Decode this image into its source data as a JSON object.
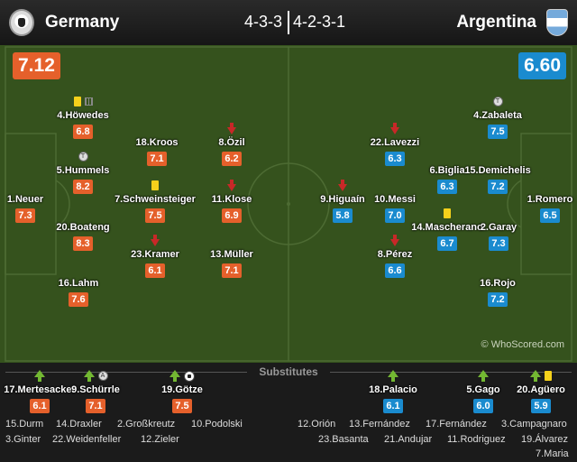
{
  "header": {
    "home_team": "Germany",
    "away_team": "Argentina",
    "home_formation": "4-3-3",
    "away_formation": "4-2-3-1",
    "home_crest_icon": "germany-crest-icon",
    "away_crest_icon": "argentina-crest-icon"
  },
  "pitch": {
    "home_rating": "7.12",
    "away_rating": "6.60",
    "watermark": "© WhoScored.com",
    "colors": {
      "home": "#e5602b",
      "away": "#1a8bcf",
      "grass": "#35521d"
    }
  },
  "home_players": [
    {
      "name": "4.Höwedes",
      "rating": "6.8",
      "badges": [
        "yellow-card-icon",
        "sub-icon"
      ]
    },
    {
      "name": "5.Hummels",
      "rating": "8.2",
      "badges": [
        "goal-icon"
      ]
    },
    {
      "name": "1.Neuer",
      "rating": "7.3",
      "badges": []
    },
    {
      "name": "20.Boateng",
      "rating": "8.3",
      "badges": []
    },
    {
      "name": "16.Lahm",
      "rating": "7.6",
      "badges": []
    },
    {
      "name": "18.Kroos",
      "rating": "7.1",
      "badges": []
    },
    {
      "name": "7.Schweinsteiger",
      "rating": "7.5",
      "badges": [
        "yellow-card-icon"
      ]
    },
    {
      "name": "23.Kramer",
      "rating": "6.1",
      "badges": [
        "sub-off-icon"
      ]
    },
    {
      "name": "8.Özil",
      "rating": "6.2",
      "badges": [
        "sub-off-icon"
      ]
    },
    {
      "name": "11.Klose",
      "rating": "6.9",
      "badges": [
        "sub-off-icon"
      ]
    },
    {
      "name": "13.Müller",
      "rating": "7.1",
      "badges": []
    }
  ],
  "away_players": [
    {
      "name": "4.Zabaleta",
      "rating": "7.5",
      "badges": [
        "goal-icon"
      ]
    },
    {
      "name": "22.Lavezzi",
      "rating": "6.3",
      "badges": [
        "sub-off-icon"
      ]
    },
    {
      "name": "6.Biglia",
      "rating": "6.3",
      "badges": []
    },
    {
      "name": "15.Demichelis",
      "rating": "7.2",
      "badges": []
    },
    {
      "name": "1.Romero",
      "rating": "6.5",
      "badges": []
    },
    {
      "name": "9.Higuaín",
      "rating": "5.8",
      "badges": [
        "sub-off-icon"
      ]
    },
    {
      "name": "10.Messi",
      "rating": "7.0",
      "badges": []
    },
    {
      "name": "14.Mascherano",
      "rating": "6.7",
      "badges": [
        "yellow-card-icon"
      ]
    },
    {
      "name": "2.Garay",
      "rating": "7.3",
      "badges": []
    },
    {
      "name": "8.Pérez",
      "rating": "6.6",
      "badges": [
        "sub-off-icon"
      ]
    },
    {
      "name": "16.Rojo",
      "rating": "7.2",
      "badges": []
    }
  ],
  "substitutes": {
    "title": "Substitutes",
    "home_used": [
      {
        "name": "17.Mertesacker",
        "rating": "6.1"
      },
      {
        "name": "9.Schürrle",
        "rating": "7.1"
      },
      {
        "name": "19.Götze",
        "rating": "7.5"
      }
    ],
    "away_used": [
      {
        "name": "18.Palacio",
        "rating": "6.1"
      },
      {
        "name": "5.Gago",
        "rating": "6.0"
      },
      {
        "name": "20.Agüero",
        "rating": "5.9"
      }
    ],
    "home_bench": [
      "15.Durm",
      "14.Draxler",
      "2.Großkreutz",
      "10.Podolski",
      "3.Ginter",
      "22.Weidenfeller",
      "12.Zieler"
    ],
    "away_bench": [
      "12.Orión",
      "13.Fernández",
      "17.Fernández",
      "3.Campagnaro",
      "23.Basanta",
      "21.Andujar",
      "11.Rodriguez",
      "19.Álvarez",
      "7.Maria"
    ]
  }
}
